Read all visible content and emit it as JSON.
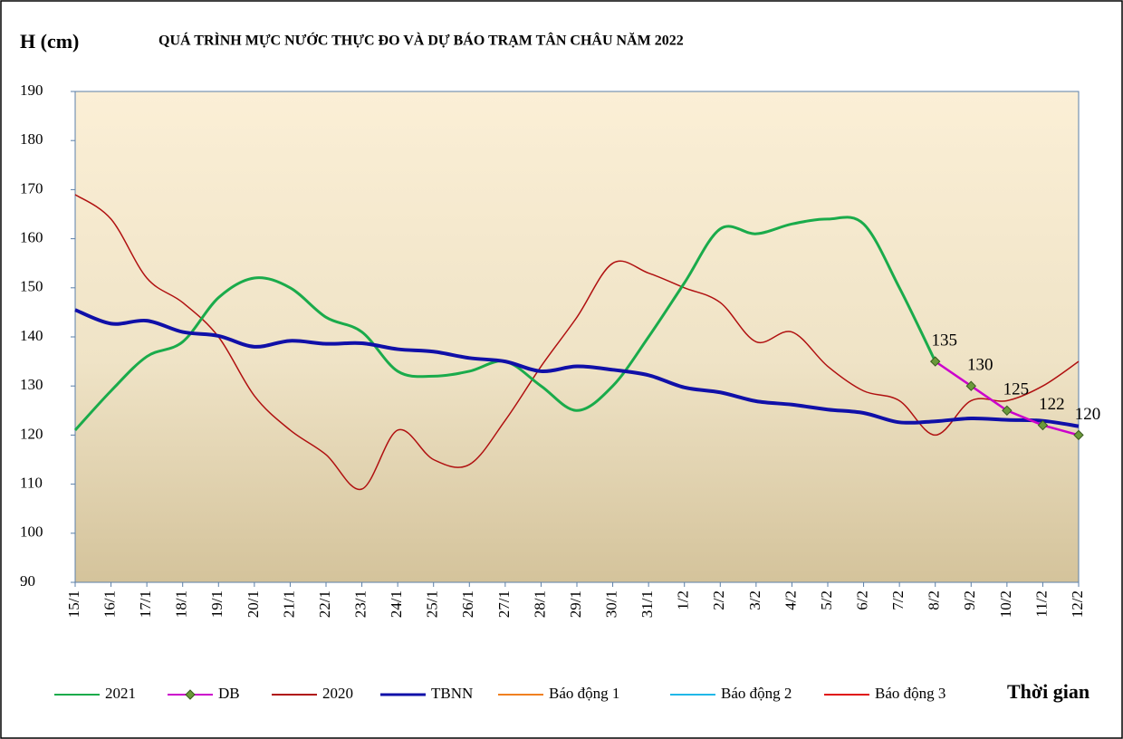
{
  "chart_data": {
    "type": "line",
    "title": "QUÁ TRÌNH MỰC NƯỚC THỰC ĐO VÀ DỰ BÁO TRẠM TÂN CHÂU NĂM 2022",
    "y_label": "H (cm)",
    "x_label": "Thời gian",
    "categories": [
      "15/1",
      "16/1",
      "17/1",
      "18/1",
      "19/1",
      "20/1",
      "21/1",
      "22/1",
      "23/1",
      "24/1",
      "25/1",
      "26/1",
      "27/1",
      "28/1",
      "29/1",
      "30/1",
      "31/1",
      "1/2",
      "2/2",
      "3/2",
      "4/2",
      "5/2",
      "6/2",
      "7/2",
      "8/2",
      "9/2",
      "10/2",
      "11/2",
      "12/2"
    ],
    "ylim": [
      90,
      190
    ],
    "yticks": [
      90,
      100,
      110,
      120,
      130,
      140,
      150,
      160,
      170,
      180,
      190
    ],
    "series": [
      {
        "name": "2021",
        "color": "#1aab4b",
        "values": [
          121,
          129,
          136,
          139,
          148,
          152,
          150,
          144,
          141,
          133,
          132,
          133,
          135,
          130,
          125,
          130,
          140,
          151,
          162,
          161,
          163,
          164,
          163,
          150,
          135,
          null,
          null,
          null,
          null
        ]
      },
      {
        "name": "DB",
        "color": "#cc00cc",
        "marker_color": "#6a9a3a",
        "values": [
          null,
          null,
          null,
          null,
          null,
          null,
          null,
          null,
          null,
          null,
          null,
          null,
          null,
          null,
          null,
          null,
          null,
          null,
          null,
          null,
          null,
          null,
          null,
          null,
          135,
          130,
          125,
          122,
          120
        ]
      },
      {
        "name": "2020",
        "color": "#b01010",
        "values": [
          169,
          164,
          152,
          147,
          140,
          128,
          121,
          116,
          109,
          121,
          115,
          114,
          123,
          134,
          144,
          155,
          153,
          150,
          147,
          139,
          141,
          134,
          129,
          127,
          120,
          127,
          127,
          130,
          135
        ]
      },
      {
        "name": "TBNN",
        "color": "#1010a8",
        "values": [
          145.5,
          142.7,
          143.3,
          141,
          140.2,
          138,
          139.2,
          138.6,
          138.7,
          137.5,
          137,
          135.7,
          135,
          133,
          134,
          133.3,
          132.2,
          129.7,
          128.7,
          126.9,
          126.2,
          125.2,
          124.5,
          122.6,
          122.8,
          123.4,
          123.1,
          122.9,
          121.8
        ]
      },
      {
        "name": "Báo động 1",
        "color": "#f08020",
        "values": [
          null,
          null,
          null,
          null,
          null,
          null,
          null,
          null,
          null,
          null,
          null,
          null,
          null,
          null,
          null,
          null,
          null,
          null,
          null,
          null,
          null,
          null,
          null,
          null,
          null,
          null,
          null,
          null,
          null
        ]
      },
      {
        "name": "Báo động 2",
        "color": "#20b8e8",
        "values": [
          null,
          null,
          null,
          null,
          null,
          null,
          null,
          null,
          null,
          null,
          null,
          null,
          null,
          null,
          null,
          null,
          null,
          null,
          null,
          null,
          null,
          null,
          null,
          null,
          null,
          null,
          null,
          null,
          null
        ]
      },
      {
        "name": "Báo động 3",
        "color": "#e01010",
        "values": [
          null,
          null,
          null,
          null,
          null,
          null,
          null,
          null,
          null,
          null,
          null,
          null,
          null,
          null,
          null,
          null,
          null,
          null,
          null,
          null,
          null,
          null,
          null,
          null,
          null,
          null,
          null,
          null,
          null
        ]
      }
    ]
  }
}
